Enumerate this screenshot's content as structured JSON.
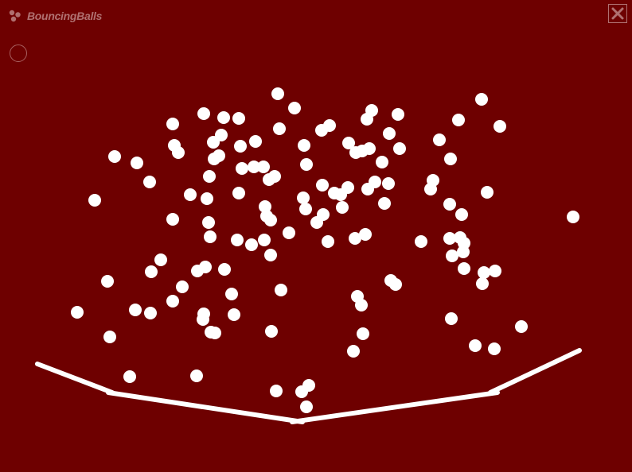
{
  "app": {
    "title": "BouncingBalls"
  },
  "colors": {
    "background": "#6e0000",
    "ball": "#ffffff",
    "chrome": "#b07070"
  },
  "icons": {
    "logo": "balls-logo-icon",
    "close": "close-icon",
    "mode": "circle-outline-icon"
  }
}
